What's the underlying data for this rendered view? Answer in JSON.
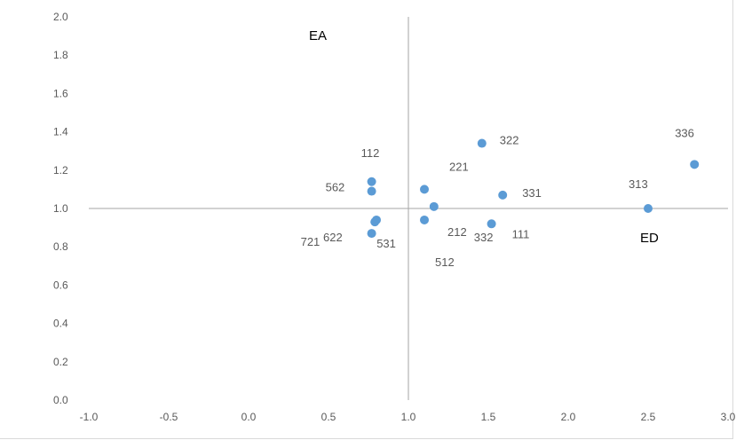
{
  "chart_data": {
    "type": "scatter",
    "title": "",
    "xlabel": "",
    "ylabel": "",
    "xlim": [
      -1.0,
      3.0
    ],
    "ylim": [
      0.0,
      2.0
    ],
    "x_ticks": [
      "-1.0",
      "-0.5",
      "0.0",
      "0.5",
      "1.0",
      "1.5",
      "2.0",
      "2.5",
      "3.0"
    ],
    "y_ticks": [
      "0.0",
      "0.2",
      "0.4",
      "0.6",
      "0.8",
      "1.0",
      "1.2",
      "1.4",
      "1.6",
      "1.8",
      "2.0"
    ],
    "reference_lines": {
      "x": 1.0,
      "y": 1.0
    },
    "grid": false,
    "marker_color": "#5b9bd5",
    "axis_color": "#a6a6a6",
    "points": [
      {
        "label": "112",
        "x": 0.77,
        "y": 1.14
      },
      {
        "label": "562",
        "x": 0.77,
        "y": 1.09
      },
      {
        "label": "622",
        "x": 0.8,
        "y": 0.94
      },
      {
        "label": "721",
        "x": 0.77,
        "y": 0.87
      },
      {
        "label": "531",
        "x": 0.79,
        "y": 0.93
      },
      {
        "label": "221",
        "x": 1.1,
        "y": 1.1
      },
      {
        "label": "332",
        "x": 1.16,
        "y": 1.01
      },
      {
        "label": "212",
        "x": 1.1,
        "y": 0.94
      },
      {
        "label": "322",
        "x": 1.46,
        "y": 1.34
      },
      {
        "label": "331",
        "x": 1.59,
        "y": 1.07
      },
      {
        "label": "111",
        "x": 1.52,
        "y": 0.92
      },
      {
        "label": "313",
        "x": 2.5,
        "y": 1.0
      },
      {
        "label": "336",
        "x": 2.79,
        "y": 1.23
      }
    ],
    "annotations": [
      "EA",
      "ED",
      "512"
    ]
  }
}
